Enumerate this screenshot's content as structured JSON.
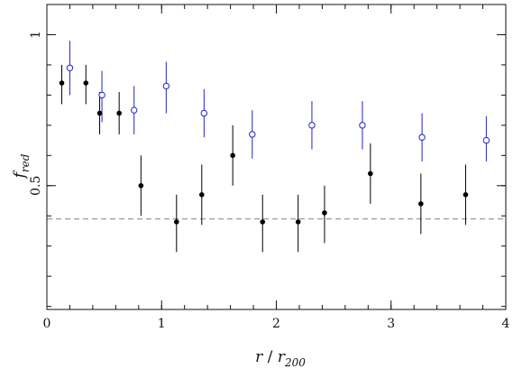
{
  "chart_data": {
    "type": "scatter",
    "xlabel": {
      "main": "r",
      "sep": " / ",
      "var": "r",
      "sub": "200"
    },
    "ylabel": {
      "main": "f",
      "sub": "red"
    },
    "xlim": [
      0,
      4
    ],
    "ylim": [
      0.09,
      1.1
    ],
    "x_ticks": [
      0,
      1,
      2,
      3,
      4
    ],
    "x_tick_labels": [
      "0",
      "1",
      "2",
      "3",
      "4"
    ],
    "y_ticks": [
      0.5,
      1
    ],
    "y_tick_labels": [
      "0.5",
      "1"
    ],
    "x_minor_step": 0.2,
    "y_minor_step": 0.1,
    "reference_line": {
      "y": 0.39,
      "color": "#9a9a9a",
      "style": "dashed"
    },
    "grid": false,
    "legend": "none",
    "series": [
      {
        "marker": "filled-circle",
        "color": "#000000",
        "points": [
          {
            "x": 0.13,
            "y": 0.84,
            "ylo": 0.77,
            "yhi": 0.9
          },
          {
            "x": 0.34,
            "y": 0.84,
            "ylo": 0.77,
            "yhi": 0.9
          },
          {
            "x": 0.46,
            "y": 0.74,
            "ylo": 0.67,
            "yhi": 0.81
          },
          {
            "x": 0.63,
            "y": 0.74,
            "ylo": 0.67,
            "yhi": 0.81
          },
          {
            "x": 0.82,
            "y": 0.5,
            "ylo": 0.4,
            "yhi": 0.6
          },
          {
            "x": 1.13,
            "y": 0.38,
            "ylo": 0.28,
            "yhi": 0.47
          },
          {
            "x": 1.35,
            "y": 0.47,
            "ylo": 0.37,
            "yhi": 0.57
          },
          {
            "x": 1.62,
            "y": 0.6,
            "ylo": 0.5,
            "yhi": 0.7
          },
          {
            "x": 1.88,
            "y": 0.38,
            "ylo": 0.28,
            "yhi": 0.47
          },
          {
            "x": 2.19,
            "y": 0.38,
            "ylo": 0.28,
            "yhi": 0.47
          },
          {
            "x": 2.42,
            "y": 0.41,
            "ylo": 0.31,
            "yhi": 0.5
          },
          {
            "x": 2.82,
            "y": 0.54,
            "ylo": 0.44,
            "yhi": 0.64
          },
          {
            "x": 3.26,
            "y": 0.44,
            "ylo": 0.34,
            "yhi": 0.54
          },
          {
            "x": 3.65,
            "y": 0.47,
            "ylo": 0.37,
            "yhi": 0.57
          }
        ]
      },
      {
        "marker": "open-circle",
        "color": "#2323c8",
        "points": [
          {
            "x": 0.2,
            "y": 0.89,
            "ylo": 0.8,
            "yhi": 0.98
          },
          {
            "x": 0.48,
            "y": 0.8,
            "ylo": 0.71,
            "yhi": 0.88
          },
          {
            "x": 0.76,
            "y": 0.75,
            "ylo": 0.67,
            "yhi": 0.83
          },
          {
            "x": 1.04,
            "y": 0.83,
            "ylo": 0.74,
            "yhi": 0.91
          },
          {
            "x": 1.37,
            "y": 0.74,
            "ylo": 0.66,
            "yhi": 0.82
          },
          {
            "x": 1.79,
            "y": 0.67,
            "ylo": 0.59,
            "yhi": 0.75
          },
          {
            "x": 2.31,
            "y": 0.7,
            "ylo": 0.62,
            "yhi": 0.78
          },
          {
            "x": 2.75,
            "y": 0.7,
            "ylo": 0.62,
            "yhi": 0.78
          },
          {
            "x": 3.27,
            "y": 0.66,
            "ylo": 0.58,
            "yhi": 0.74
          },
          {
            "x": 3.83,
            "y": 0.65,
            "ylo": 0.58,
            "yhi": 0.73
          }
        ]
      }
    ]
  }
}
